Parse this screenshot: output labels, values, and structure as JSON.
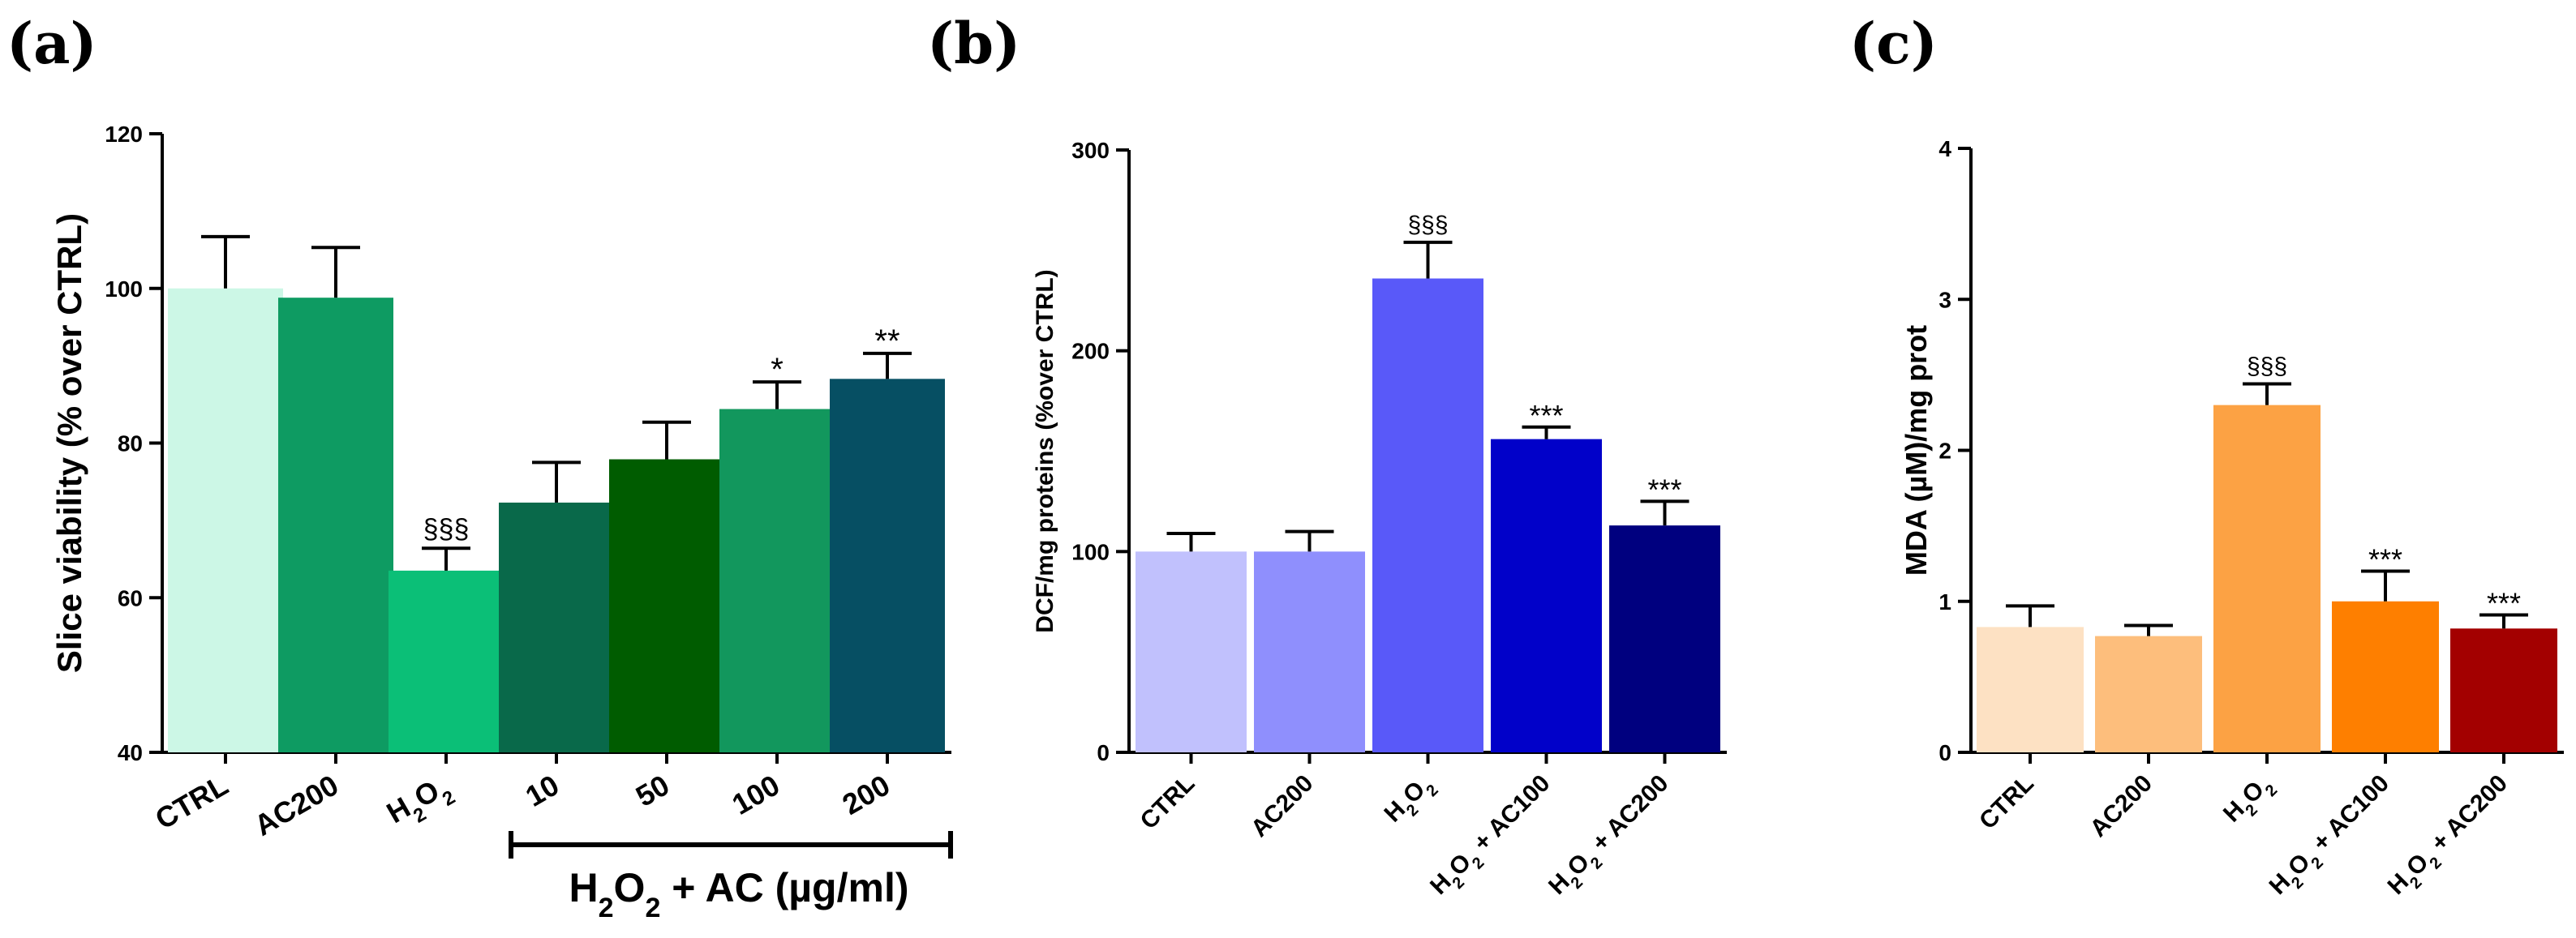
{
  "chart_data": [
    {
      "panel": "(a)",
      "type": "bar",
      "ylabel": "Slice viability (% over CTRL)",
      "ylim": [
        40,
        120
      ],
      "yticks": [
        "40",
        "60",
        "80",
        "100",
        "120"
      ],
      "categories": [
        {
          "label": "CTRL"
        },
        {
          "label": "AC200"
        },
        {
          "label": "H",
          "sub": "2",
          "tail": "O",
          "sub2": "2"
        },
        {
          "label": "10"
        },
        {
          "label": "50"
        },
        {
          "label": "100"
        },
        {
          "label": "200"
        }
      ],
      "values": [
        100,
        98.8,
        63.5,
        72.3,
        77.9,
        84.4,
        88.3
      ],
      "errors": [
        6.7,
        6.5,
        2.9,
        5.2,
        4.8,
        3.5,
        3.3
      ],
      "colors": [
        "#ccf7e6",
        "#0e9b62",
        "#0bbf77",
        "#09694a",
        "#005c00",
        "#12975d",
        "#064f63"
      ],
      "significance": [
        "",
        "",
        "§§§",
        "",
        "",
        "*",
        "**"
      ],
      "group_label": {
        "pre": "H",
        "sub1": "2",
        "mid": "O",
        "sub2": "2",
        "post": " + AC (µg/ml)"
      }
    },
    {
      "panel": "(b)",
      "type": "bar",
      "ylabel": "DCF/mg proteins (%over CTRL)",
      "ylim": [
        0,
        300
      ],
      "yticks": [
        "0",
        "100",
        "200",
        "300"
      ],
      "categories": [
        {
          "label": "CTRL"
        },
        {
          "label": "AC200"
        },
        {
          "label": "H",
          "sub": "2",
          "tail": "O",
          "sub2": "2"
        },
        {
          "label": "H",
          "sub": "2",
          "tail": "O",
          "sub2": "2",
          "rest": " + AC100"
        },
        {
          "label": "H",
          "sub": "2",
          "tail": "O",
          "sub2": "2",
          "rest": " + AC200"
        }
      ],
      "values": [
        100,
        100,
        236,
        156,
        113
      ],
      "errors": [
        9,
        10,
        18,
        6,
        12
      ],
      "colors": [
        "#c1c1fd",
        "#8f8ffd",
        "#5959f9",
        "#0101c9",
        "#00007f"
      ],
      "significance": [
        "",
        "",
        "§§§",
        "***",
        "***"
      ]
    },
    {
      "panel": "(c)",
      "type": "bar",
      "ylabel": "MDA (µM)/mg prot",
      "ylim": [
        0,
        4
      ],
      "yticks": [
        "0",
        "1",
        "2",
        "3",
        "4"
      ],
      "categories": [
        {
          "label": "CTRL"
        },
        {
          "label": "AC200"
        },
        {
          "label": "H",
          "sub": "2",
          "tail": "O",
          "sub2": "2"
        },
        {
          "label": "H",
          "sub": "2",
          "tail": "O",
          "sub2": "2",
          "rest": " + AC100"
        },
        {
          "label": "H",
          "sub": "2",
          "tail": "O",
          "sub2": "2",
          "rest": " + AC200"
        }
      ],
      "values": [
        0.83,
        0.77,
        2.3,
        1.0,
        0.82
      ],
      "errors": [
        0.14,
        0.07,
        0.14,
        0.2,
        0.09
      ],
      "colors": [
        "#fde1c3",
        "#fdbe7c",
        "#fca244",
        "#fe7f00",
        "#a30000"
      ],
      "significance": [
        "",
        "",
        "§§§",
        "***",
        "***"
      ]
    }
  ]
}
